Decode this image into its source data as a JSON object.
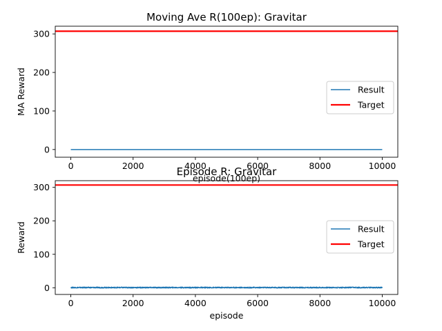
{
  "chart_data": [
    {
      "type": "line",
      "title": "Moving Ave R(100ep): Gravitar",
      "xlabel": "episode(100ep)",
      "ylabel": "MA Reward",
      "xlim": [
        -500,
        10500
      ],
      "ylim": [
        -20,
        320
      ],
      "xticks": [
        0,
        2000,
        4000,
        6000,
        8000,
        10000
      ],
      "yticks": [
        0,
        100,
        200,
        300
      ],
      "legend": "center-right",
      "series": [
        {
          "name": "Result",
          "color": "#1f77b4",
          "x": [
            0,
            10000
          ],
          "y": [
            0,
            0
          ],
          "noise": 0
        },
        {
          "name": "Target",
          "color": "#ff0000",
          "x": [
            -500,
            10500
          ],
          "y": [
            307,
            307
          ],
          "noise": 0
        }
      ]
    },
    {
      "type": "line",
      "title": "Episode R: Gravitar",
      "xlabel": "episode",
      "ylabel": "Reward",
      "xlim": [
        -500,
        10500
      ],
      "ylim": [
        -20,
        320
      ],
      "xticks": [
        0,
        2000,
        4000,
        6000,
        8000,
        10000
      ],
      "yticks": [
        0,
        100,
        200,
        300
      ],
      "legend": "center-right",
      "series": [
        {
          "name": "Result",
          "color": "#1f77b4",
          "x": [
            0,
            10000
          ],
          "y": [
            0,
            0
          ],
          "noise": 3
        },
        {
          "name": "Target",
          "color": "#ff0000",
          "x": [
            -500,
            10500
          ],
          "y": [
            307,
            307
          ],
          "noise": 0
        }
      ]
    }
  ]
}
